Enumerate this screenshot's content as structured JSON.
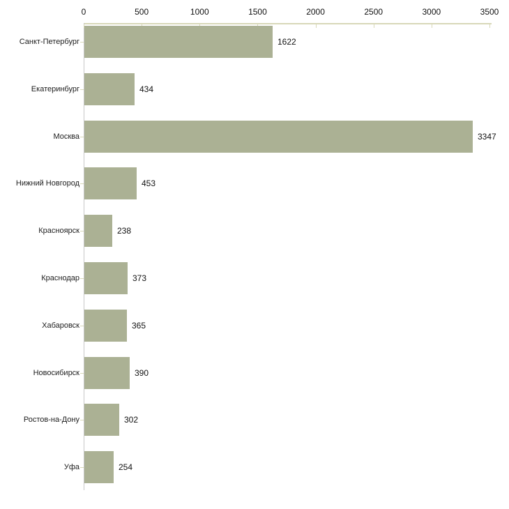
{
  "colors": {
    "bar_fill": "#abb194",
    "axis_line": "#d8d8b8",
    "tick": "#d8d8b8",
    "y_axis_line": "#c6c6c6",
    "text": "#111111"
  },
  "chart_data": {
    "type": "bar",
    "orientation": "horizontal",
    "title": "",
    "xlabel": "",
    "ylabel": "",
    "axis_position": "top",
    "grid": false,
    "legend": false,
    "xlim": [
      0,
      3500
    ],
    "x_ticks": [
      "0",
      "500",
      "1000",
      "1500",
      "2000",
      "2500",
      "3000",
      "3500"
    ],
    "x_tick_values": [
      0,
      500,
      1000,
      1500,
      2000,
      2500,
      3000,
      3500
    ],
    "categories": [
      "Санкт-Петербург",
      "Екатеринбург",
      "Москва",
      "Нижний Новгород",
      "Красноярск",
      "Краснодар",
      "Хабаровск",
      "Новосибирск",
      "Ростов-на-Дону",
      "Уфа"
    ],
    "values": [
      1622,
      434,
      3347,
      453,
      238,
      373,
      365,
      390,
      302,
      254
    ],
    "value_labels": [
      "1622",
      "434",
      "3347",
      "453",
      "238",
      "373",
      "365",
      "390",
      "302",
      "254"
    ]
  }
}
